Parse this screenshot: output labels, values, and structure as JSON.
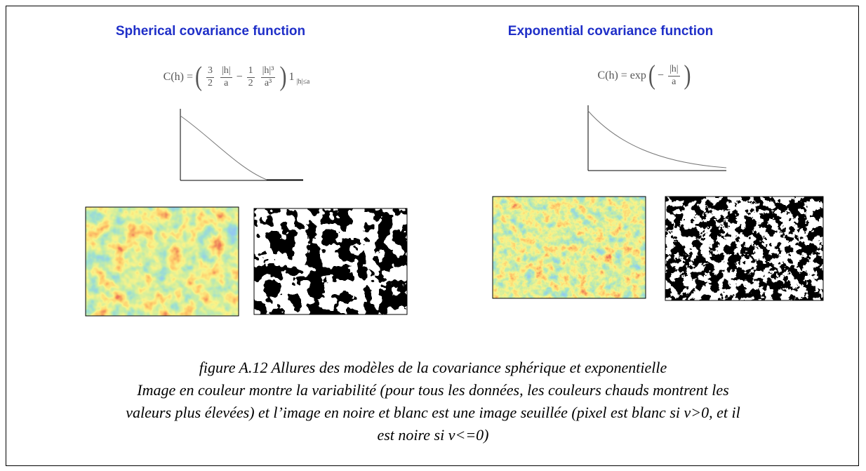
{
  "panels": [
    {
      "title": "Spherical covariance function",
      "formula": [
        "C(h) =",
        "(",
        {
          "num": "3",
          "den": "2"
        },
        {
          "num": "|h|",
          "den": "a"
        },
        "−",
        {
          "num": "1",
          "den": "2"
        },
        {
          "num": "|h|³",
          "den": "a³"
        },
        ")",
        "1",
        {
          "sub": "|h|≤a"
        }
      ]
    },
    {
      "title": "Exponential covariance function",
      "formula": [
        "C(h) = exp",
        "(",
        "−",
        {
          "num": "|h|",
          "den": "a"
        },
        ")"
      ]
    }
  ],
  "caption": [
    "figure A.12  Allures des modèles de la covariance sphérique et exponentielle",
    "Image en couleur montre la variabilité (pour tous les données, les couleurs chauds montrent les",
    "valeurs plus élevées) et l’image en noire et blanc est une image seuillée (pixel est blanc si v>0, et il",
    "est noire si v<=0)"
  ]
}
